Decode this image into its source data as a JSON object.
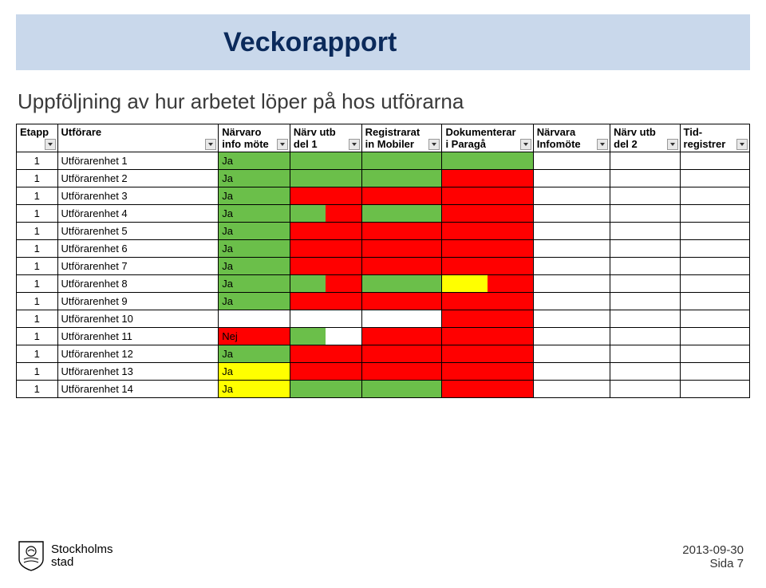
{
  "banner": {
    "title": "Veckorapport"
  },
  "subtitle": "Uppföljning av hur arbetet löper på hos utförarna",
  "colors": {
    "green": "#6bbf4a",
    "red": "#ff0000",
    "yellow": "#ffff00",
    "white": "#ffffff"
  },
  "table": {
    "headers": [
      {
        "line1": "Etapp",
        "line2": ""
      },
      {
        "line1": "Utförare",
        "line2": ""
      },
      {
        "line1": "Närvaro",
        "line2": "info möte"
      },
      {
        "line1": "Närv utb",
        "line2": "del 1"
      },
      {
        "line1": "Registrarat",
        "line2": "in Mobiler"
      },
      {
        "line1": "Dokumenterar",
        "line2": "i Paragå"
      },
      {
        "line1": "Närvara",
        "line2": "Infomöte"
      },
      {
        "line1": "Närv utb",
        "line2": "del 2"
      },
      {
        "line1": "Tid-",
        "line2": "registrer"
      }
    ],
    "rows": [
      {
        "etapp": "1",
        "name": "Utförarenhet 1",
        "narv_text": "Ja",
        "narv_fill": "green",
        "del1": [
          "green",
          "green"
        ],
        "reg": [
          "green",
          "green"
        ],
        "dok": [
          "green",
          "green"
        ],
        "ninf": "white",
        "del2": "white",
        "tid": "white"
      },
      {
        "etapp": "1",
        "name": "Utförarenhet 2",
        "narv_text": "Ja",
        "narv_fill": "green",
        "del1": [
          "green",
          "green"
        ],
        "reg": [
          "green",
          "green"
        ],
        "dok": [
          "red",
          "red"
        ],
        "ninf": "white",
        "del2": "white",
        "tid": "white"
      },
      {
        "etapp": "1",
        "name": "Utförarenhet 3",
        "narv_text": "Ja",
        "narv_fill": "green",
        "del1": [
          "red",
          "red"
        ],
        "reg": [
          "red",
          "red"
        ],
        "dok": [
          "red",
          "red"
        ],
        "ninf": "white",
        "del2": "white",
        "tid": "white"
      },
      {
        "etapp": "1",
        "name": "Utförarenhet 4",
        "narv_text": "Ja",
        "narv_fill": "green",
        "del1": [
          "green",
          "red"
        ],
        "reg": [
          "green",
          "green"
        ],
        "dok": [
          "red",
          "red"
        ],
        "ninf": "white",
        "del2": "white",
        "tid": "white"
      },
      {
        "etapp": "1",
        "name": "Utförarenhet 5",
        "narv_text": "Ja",
        "narv_fill": "green",
        "del1": [
          "red",
          "red"
        ],
        "reg": [
          "red",
          "red"
        ],
        "dok": [
          "red",
          "red"
        ],
        "ninf": "white",
        "del2": "white",
        "tid": "white"
      },
      {
        "etapp": "1",
        "name": "Utförarenhet 6",
        "narv_text": "Ja",
        "narv_fill": "green",
        "del1": [
          "red",
          "red"
        ],
        "reg": [
          "red",
          "red"
        ],
        "dok": [
          "red",
          "red"
        ],
        "ninf": "white",
        "del2": "white",
        "tid": "white"
      },
      {
        "etapp": "1",
        "name": "Utförarenhet 7",
        "narv_text": "Ja",
        "narv_fill": "green",
        "del1": [
          "red",
          "red"
        ],
        "reg": [
          "red",
          "red"
        ],
        "dok": [
          "red",
          "red"
        ],
        "ninf": "white",
        "del2": "white",
        "tid": "white"
      },
      {
        "etapp": "1",
        "name": "Utförarenhet 8",
        "narv_text": "Ja",
        "narv_fill": "green",
        "del1": [
          "green",
          "red"
        ],
        "reg": [
          "green",
          "green"
        ],
        "dok": [
          "yellow",
          "red"
        ],
        "ninf": "white",
        "del2": "white",
        "tid": "white"
      },
      {
        "etapp": "1",
        "name": "Utförarenhet 9",
        "narv_text": "Ja",
        "narv_fill": "green",
        "del1": [
          "red",
          "red"
        ],
        "reg": [
          "red",
          "red"
        ],
        "dok": [
          "red",
          "red"
        ],
        "ninf": "white",
        "del2": "white",
        "tid": "white"
      },
      {
        "etapp": "1",
        "name": "Utförarenhet 10",
        "narv_text": "",
        "narv_fill": "white",
        "del1": [
          "white",
          "white"
        ],
        "reg": [
          "white",
          "white"
        ],
        "dok": [
          "red",
          "red"
        ],
        "ninf": "white",
        "del2": "white",
        "tid": "white"
      },
      {
        "etapp": "1",
        "name": "Utförarenhet 11",
        "narv_text": "Nej",
        "narv_fill": "red",
        "del1": [
          "green",
          "white"
        ],
        "reg": [
          "red",
          "red"
        ],
        "dok": [
          "red",
          "red"
        ],
        "ninf": "white",
        "del2": "white",
        "tid": "white"
      },
      {
        "etapp": "1",
        "name": "Utförarenhet 12",
        "narv_text": "Ja",
        "narv_fill": "green",
        "del1": [
          "red",
          "red"
        ],
        "reg": [
          "red",
          "red"
        ],
        "dok": [
          "red",
          "red"
        ],
        "ninf": "white",
        "del2": "white",
        "tid": "white"
      },
      {
        "etapp": "1",
        "name": "Utförarenhet 13",
        "narv_text": "Ja",
        "narv_fill": "yellow",
        "del1": [
          "red",
          "red"
        ],
        "reg": [
          "red",
          "red"
        ],
        "dok": [
          "red",
          "red"
        ],
        "ninf": "white",
        "del2": "white",
        "tid": "white"
      },
      {
        "etapp": "1",
        "name": "Utförarenhet 14",
        "narv_text": "Ja",
        "narv_fill": "yellow",
        "del1": [
          "green",
          "green"
        ],
        "reg": [
          "green",
          "green"
        ],
        "dok": [
          "red",
          "red"
        ],
        "ninf": "white",
        "del2": "white",
        "tid": "white"
      }
    ]
  },
  "footer": {
    "brand_line1": "Stockholms",
    "brand_line2": "stad",
    "date": "2013-09-30",
    "page": "Sida 7"
  }
}
